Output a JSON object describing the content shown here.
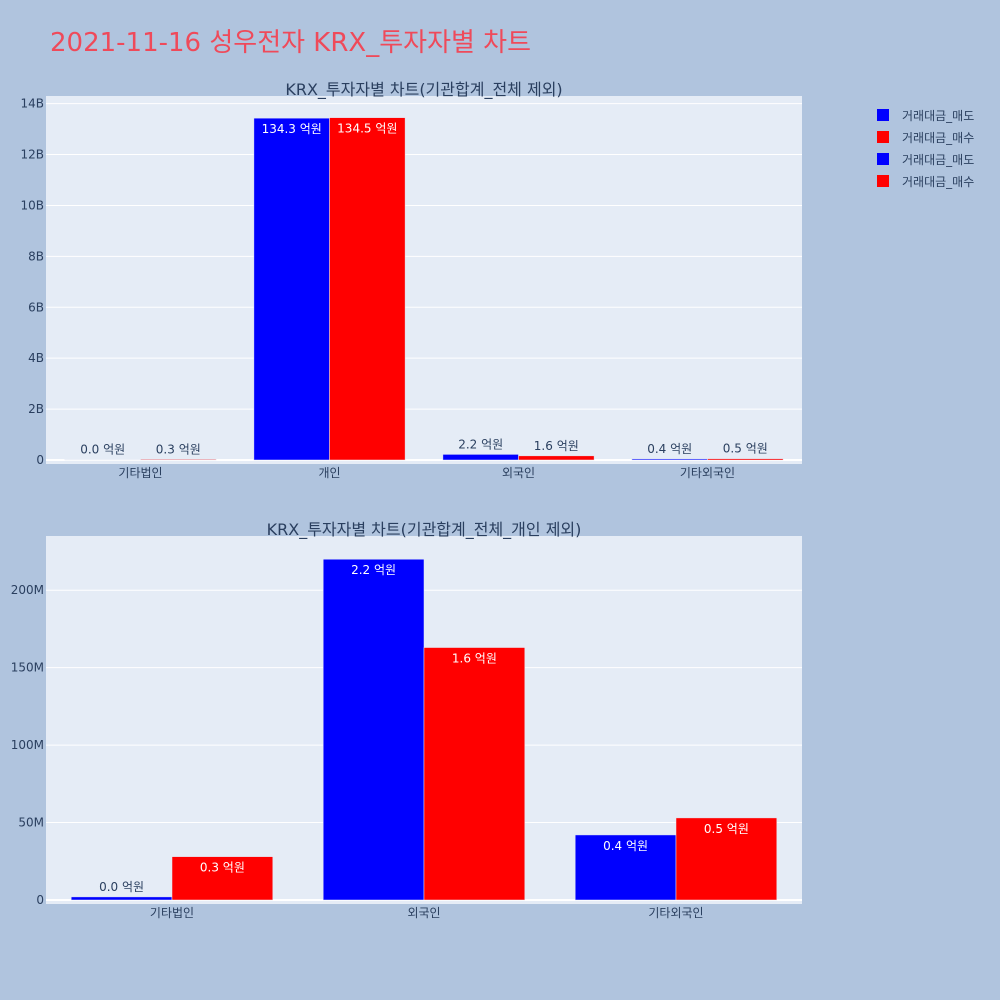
{
  "page_title": "2021-11-16 성우전자 KRX_투자자별 차트",
  "colors": {
    "sell": "#0000ff",
    "buy": "#ff0000",
    "plot_bg": "#e5ecf6",
    "page_bg": "#b0c4de",
    "title": "#ef4a5a"
  },
  "legend": [
    {
      "label": "거래대금_매도",
      "color": "#0000ff"
    },
    {
      "label": "거래대금_매수",
      "color": "#ff0000"
    },
    {
      "label": "거래대금_매도",
      "color": "#0000ff"
    },
    {
      "label": "거래대금_매수",
      "color": "#ff0000"
    }
  ],
  "chart_data": [
    {
      "type": "bar",
      "title": "KRX_투자자별 차트(기관합계_전체 제외)",
      "categories": [
        "기타법인",
        "개인",
        "외국인",
        "기타외국인"
      ],
      "series": [
        {
          "name": "거래대금_매도",
          "color": "#0000ff",
          "values": [
            2000000,
            13430000000,
            220000000,
            42000000
          ],
          "labels": [
            "0.0 억원",
            "134.3 억원",
            "2.2 억원",
            "0.4 억원"
          ]
        },
        {
          "name": "거래대금_매수",
          "color": "#ff0000",
          "values": [
            28000000,
            13450000000,
            163000000,
            53000000
          ],
          "labels": [
            "0.3 억원",
            "134.5 억원",
            "1.6 억원",
            "0.5 억원"
          ]
        }
      ],
      "ylim": [
        0,
        14300000000
      ],
      "yticks": [
        0,
        2000000000,
        4000000000,
        6000000000,
        8000000000,
        10000000000,
        12000000000,
        14000000000
      ],
      "yticklabels": [
        "0",
        "2B",
        "4B",
        "6B",
        "8B",
        "10B",
        "12B",
        "14B"
      ],
      "grid": true
    },
    {
      "type": "bar",
      "title": "KRX_투자자별 차트(기관합계_전체_개인 제외)",
      "categories": [
        "기타법인",
        "외국인",
        "기타외국인"
      ],
      "series": [
        {
          "name": "거래대금_매도",
          "color": "#0000ff",
          "values": [
            2000000,
            220000000,
            42000000
          ],
          "labels": [
            "0.0 억원",
            "2.2 억원",
            "0.4 억원"
          ]
        },
        {
          "name": "거래대금_매수",
          "color": "#ff0000",
          "values": [
            28000000,
            163000000,
            53000000
          ],
          "labels": [
            "0.3 억원",
            "1.6 억원",
            "0.5 억원"
          ]
        }
      ],
      "ylim": [
        0,
        235000000
      ],
      "yticks": [
        0,
        50000000,
        100000000,
        150000000,
        200000000
      ],
      "yticklabels": [
        "0",
        "50M",
        "100M",
        "150M",
        "200M"
      ],
      "grid": true
    }
  ]
}
